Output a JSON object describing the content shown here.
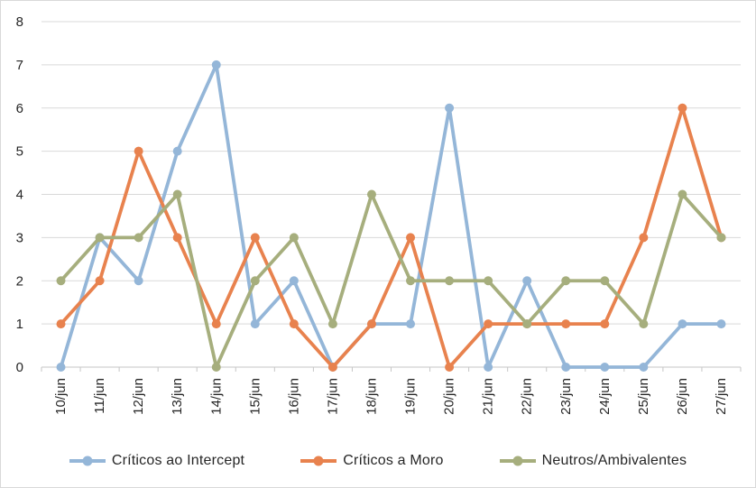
{
  "chart_data": {
    "type": "line",
    "title": "",
    "categories": [
      "10/jun",
      "11/jun",
      "12/jun",
      "13/jun",
      "14/jun",
      "15/jun",
      "16/jun",
      "17/jun",
      "18/jun",
      "19/jun",
      "20/jun",
      "21/jun",
      "22/jun",
      "23/jun",
      "24/jun",
      "25/jun",
      "26/jun",
      "27/jun"
    ],
    "series": [
      {
        "name": "Críticos ao Intercept",
        "color": "#94B6D8",
        "values": [
          0,
          3,
          2,
          5,
          7,
          1,
          2,
          0,
          1,
          1,
          6,
          0,
          2,
          0,
          0,
          0,
          1,
          1
        ]
      },
      {
        "name": "Críticos a Moro",
        "color": "#E8824E",
        "values": [
          1,
          2,
          5,
          3,
          1,
          3,
          1,
          0,
          1,
          3,
          0,
          1,
          1,
          1,
          1,
          3,
          6,
          3
        ]
      },
      {
        "name": "Neutros/Ambivalentes",
        "color": "#A6AE7D",
        "values": [
          2,
          3,
          3,
          4,
          0,
          2,
          3,
          1,
          4,
          2,
          2,
          2,
          1,
          2,
          2,
          1,
          4,
          3
        ]
      }
    ],
    "ylim": [
      0,
      8
    ],
    "yticks": [
      0,
      1,
      2,
      3,
      4,
      5,
      6,
      7,
      8
    ],
    "xlabel": "",
    "ylabel": "",
    "grid": true,
    "legend_position": "bottom",
    "marker": "circle"
  },
  "style": {
    "grid_color": "#D9D9D9",
    "axis_color": "#C6C6C6",
    "tick_color": "#C6C6C6",
    "axis_text_color": "#262626",
    "background": "#FFFFFF",
    "frame_border": "#D9D9D9"
  }
}
